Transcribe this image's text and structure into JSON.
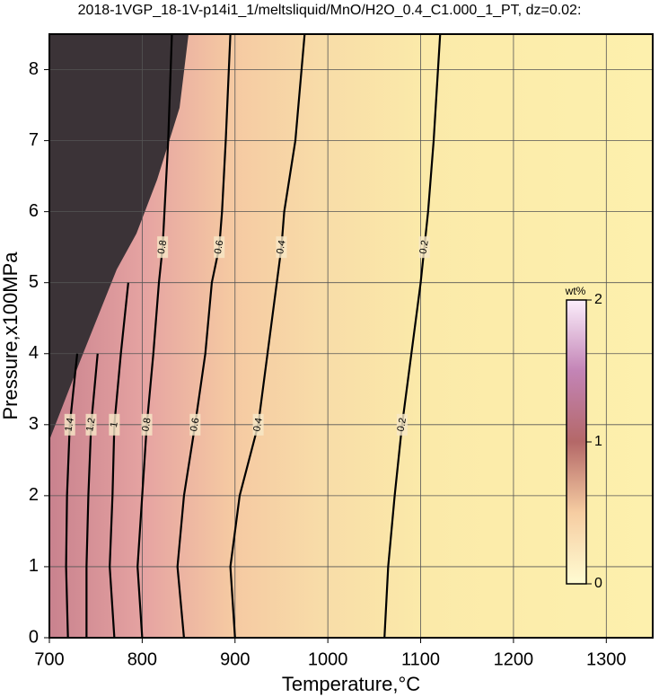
{
  "chart_data": {
    "type": "contour",
    "title": "2018-1VGP_18-1V-p14i1_1/meltsliquid/MnO/H2O_0.4_C1.000_1_PT, dz=0.02:",
    "x_label": "Temperature,°C",
    "y_label": "Pressure,x100MPa",
    "xlim": [
      700,
      1350
    ],
    "ylim": [
      0,
      8.5
    ],
    "xticks": [
      700,
      800,
      900,
      1000,
      1100,
      1200,
      1300
    ],
    "yticks": [
      0,
      1,
      2,
      3,
      4,
      5,
      6,
      7,
      8
    ],
    "grid": true,
    "color": "#000000",
    "contours": [
      {
        "level": 0.2,
        "x": [
          1061,
          1065,
          1072,
          1080,
          1090,
          1100,
          1104,
          1108,
          1114,
          1121
        ],
        "y": [
          0,
          1,
          2,
          3,
          4,
          5,
          5.5,
          6,
          7,
          8.5
        ]
      },
      {
        "level": 0.4,
        "x": [
          900,
          895,
          905,
          925,
          935,
          945,
          950,
          953,
          965,
          975
        ],
        "y": [
          0,
          1,
          2,
          3,
          4,
          5,
          5.5,
          6,
          7,
          8.5
        ]
      },
      {
        "level": 0.6,
        "x": [
          845,
          838,
          845,
          857,
          868,
          875,
          883,
          886,
          890,
          895
        ],
        "y": [
          0,
          1,
          2,
          3,
          4,
          5,
          5.5,
          6,
          7,
          8.5
        ]
      },
      {
        "level": 0.8,
        "x": [
          800,
          795,
          800,
          805,
          812,
          818,
          822,
          824,
          828,
          832
        ],
        "y": [
          0,
          1,
          2,
          3,
          4,
          5,
          5.5,
          6,
          7,
          8.5
        ]
      },
      {
        "level": 1,
        "x": [
          770,
          765,
          768,
          770,
          777,
          785
        ],
        "y": [
          0,
          1,
          2,
          3,
          4,
          5
        ]
      },
      {
        "level": 1.2,
        "x": [
          740,
          740,
          742,
          745,
          752
        ],
        "y": [
          0,
          1,
          2,
          3,
          4
        ]
      },
      {
        "level": 1.4,
        "x": [
          720,
          718,
          719,
          722,
          730
        ],
        "y": [
          0,
          1,
          2,
          3,
          4
        ]
      }
    ],
    "colorbar": {
      "label": "wt%",
      "lim": [
        0,
        2
      ],
      "ticks": [
        0,
        1,
        2
      ]
    }
  }
}
